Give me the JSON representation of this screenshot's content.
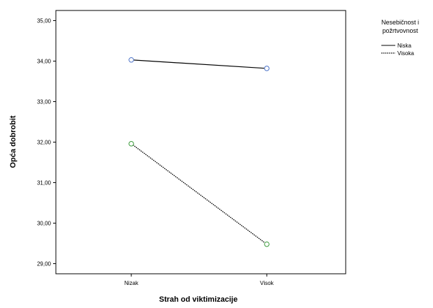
{
  "chart_data": {
    "type": "line",
    "xlabel": "Strah od viktimizacije",
    "ylabel": "Opća dobrobit",
    "categories": [
      "Nizak",
      "Visok"
    ],
    "ylim": [
      28.75,
      35.25
    ],
    "yticks": [
      29,
      30,
      31,
      32,
      33,
      34,
      35
    ],
    "ytick_labels": [
      "29,00",
      "30,00",
      "31,00",
      "32,00",
      "33,00",
      "34,00",
      "35,00"
    ],
    "grid": false,
    "legend": {
      "title_lines": [
        "Nesebičnost i",
        "požrtvovnost"
      ],
      "placement": "top-right-outside",
      "entries": [
        "Niska",
        "Visoka"
      ]
    },
    "series": [
      {
        "name": "Niska",
        "values": [
          34.03,
          33.82
        ],
        "line_style": "solid",
        "line_color": "#000000",
        "marker_color": "#4a72c8"
      },
      {
        "name": "Visoka",
        "values": [
          31.96,
          29.48
        ],
        "line_style": "dotted",
        "line_color": "#000000",
        "marker_color": "#3a9a3a"
      }
    ]
  }
}
